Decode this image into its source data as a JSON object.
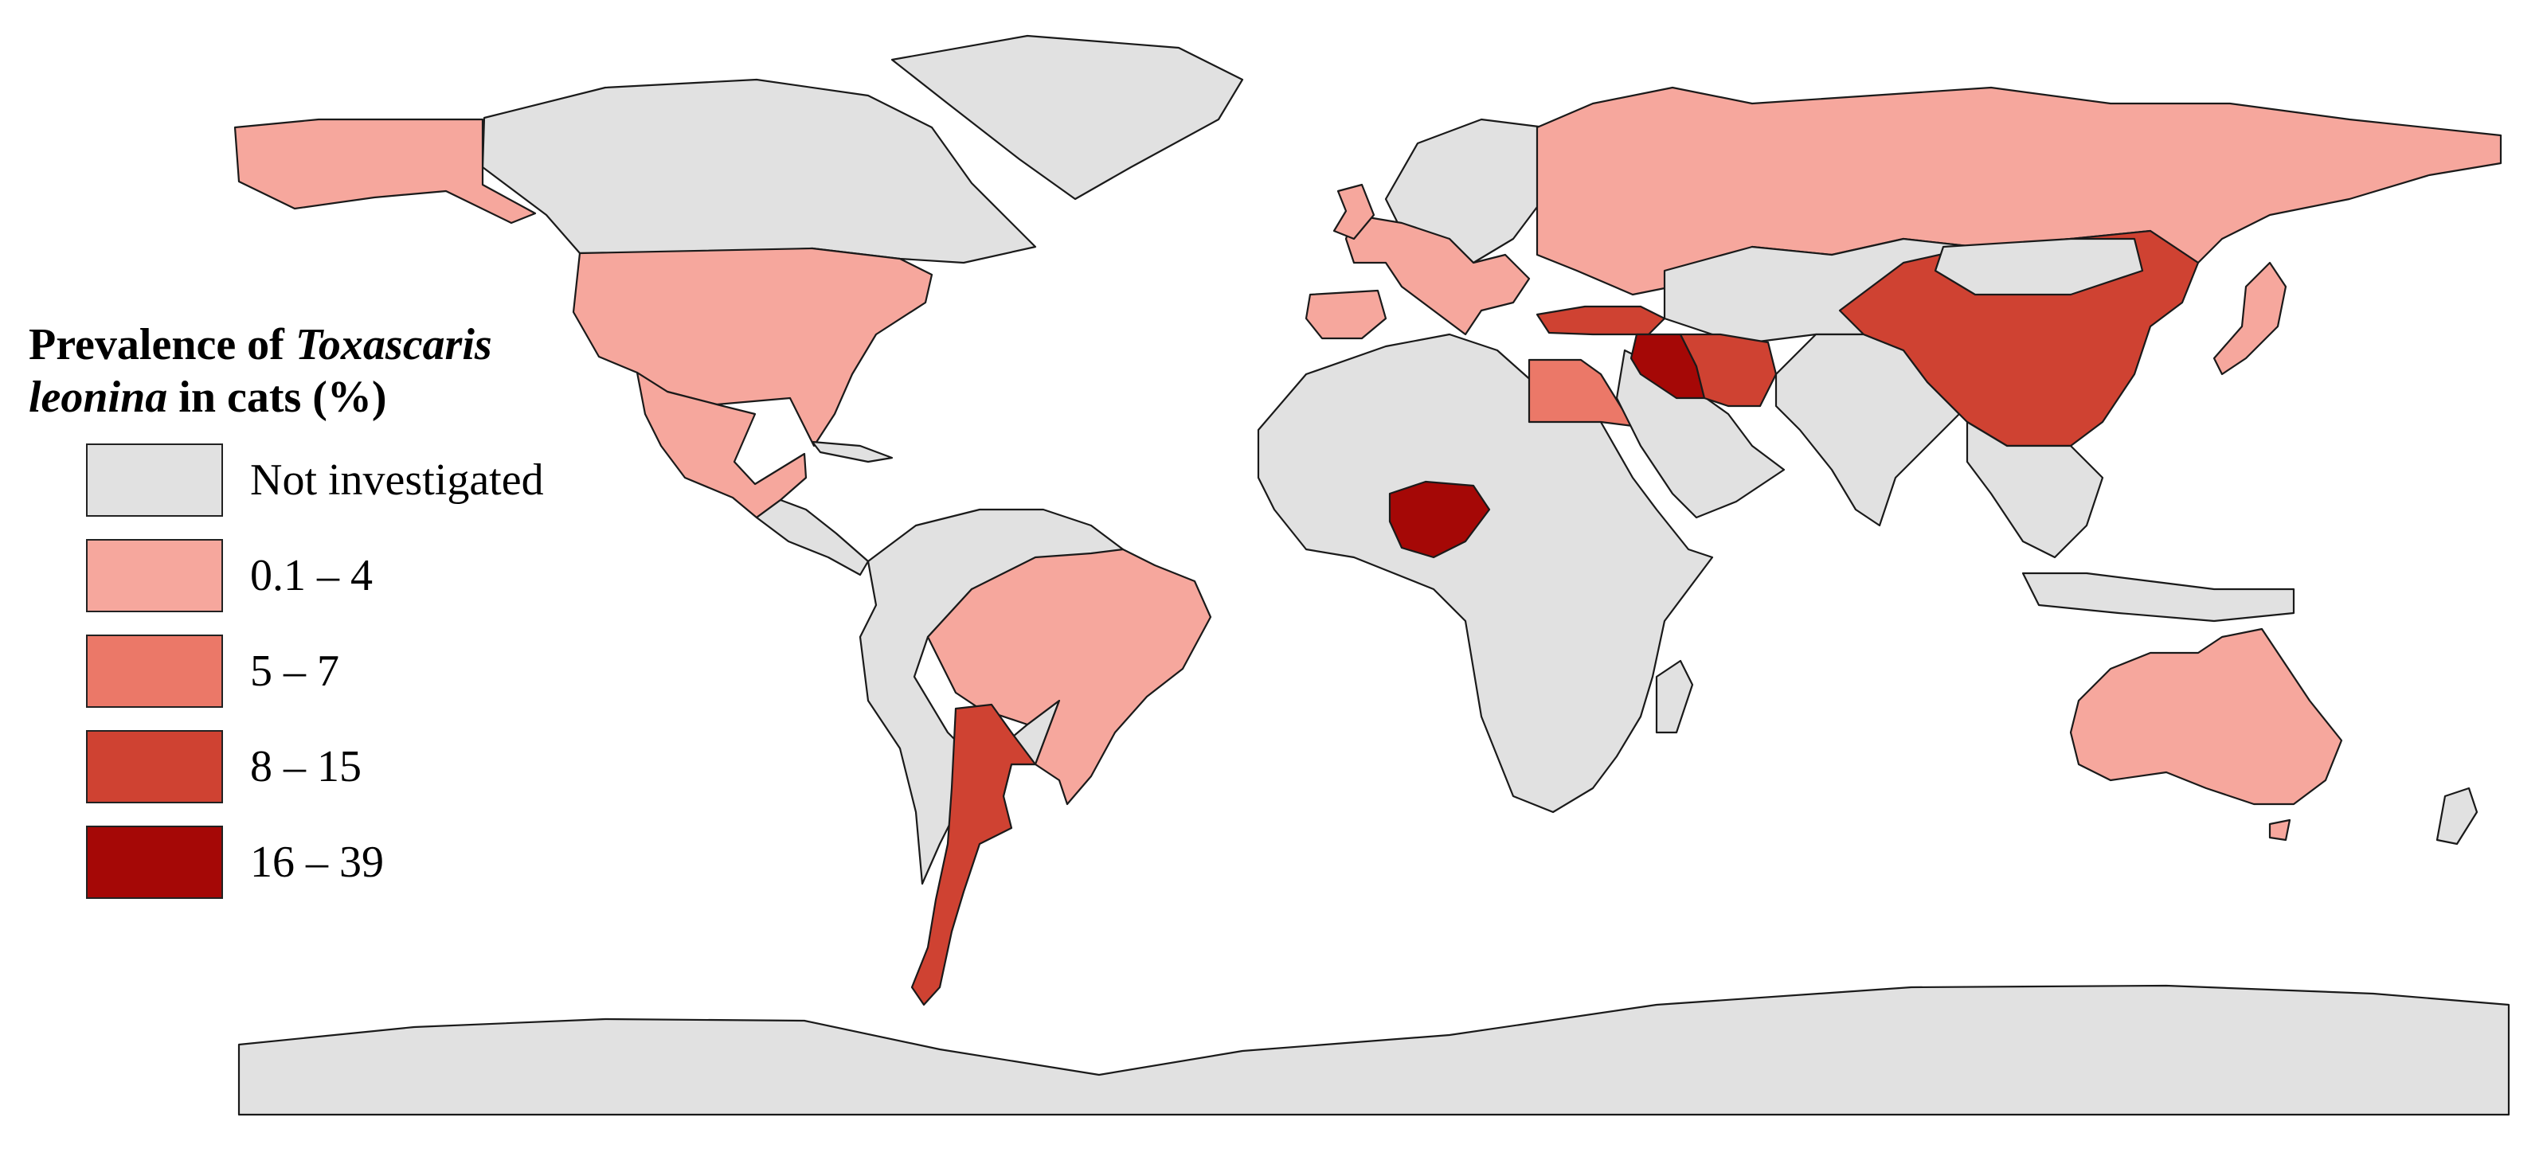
{
  "legend": {
    "title_part1": "Prevalence of ",
    "title_species": "Toxascaris leonina",
    "title_part2": " in cats (%)",
    "items": [
      {
        "label": "Not investigated",
        "color": "#e1e1e1"
      },
      {
        "label": "0.1 – 4",
        "color": "#f6a79d"
      },
      {
        "label": "5 – 7",
        "color": "#eb7868"
      },
      {
        "label": "8 – 15",
        "color": "#cf4232"
      },
      {
        "label": "16 – 39",
        "color": "#a50806"
      }
    ]
  },
  "colors": {
    "ocean": "#ffffff",
    "not_investigated": "#e1e1e1",
    "border": "#1a1a1a"
  },
  "regions": [
    {
      "name": "Alaska (USA)",
      "category": "0.1 – 4"
    },
    {
      "name": "Canada",
      "category": "Not investigated"
    },
    {
      "name": "Greenland",
      "category": "Not investigated"
    },
    {
      "name": "United States",
      "category": "0.1 – 4"
    },
    {
      "name": "Mexico",
      "category": "0.1 – 4"
    },
    {
      "name": "Brazil",
      "category": "0.1 – 4"
    },
    {
      "name": "Argentina",
      "category": "8 – 15"
    },
    {
      "name": "Russia",
      "category": "0.1 – 4"
    },
    {
      "name": "United Kingdom",
      "category": "0.1 – 4"
    },
    {
      "name": "Spain",
      "category": "0.1 – 4"
    },
    {
      "name": "Turkey",
      "category": "8 – 15"
    },
    {
      "name": "Iraq",
      "category": "16 – 39"
    },
    {
      "name": "Iran",
      "category": "8 – 15"
    },
    {
      "name": "Egypt",
      "category": "5 – 7"
    },
    {
      "name": "Nigeria",
      "category": "16 – 39"
    },
    {
      "name": "China",
      "category": "8 – 15"
    },
    {
      "name": "Japan",
      "category": "0.1 – 4"
    },
    {
      "name": "Australia",
      "category": "0.1 – 4"
    },
    {
      "name": "Antarctica",
      "category": "Not investigated"
    }
  ]
}
